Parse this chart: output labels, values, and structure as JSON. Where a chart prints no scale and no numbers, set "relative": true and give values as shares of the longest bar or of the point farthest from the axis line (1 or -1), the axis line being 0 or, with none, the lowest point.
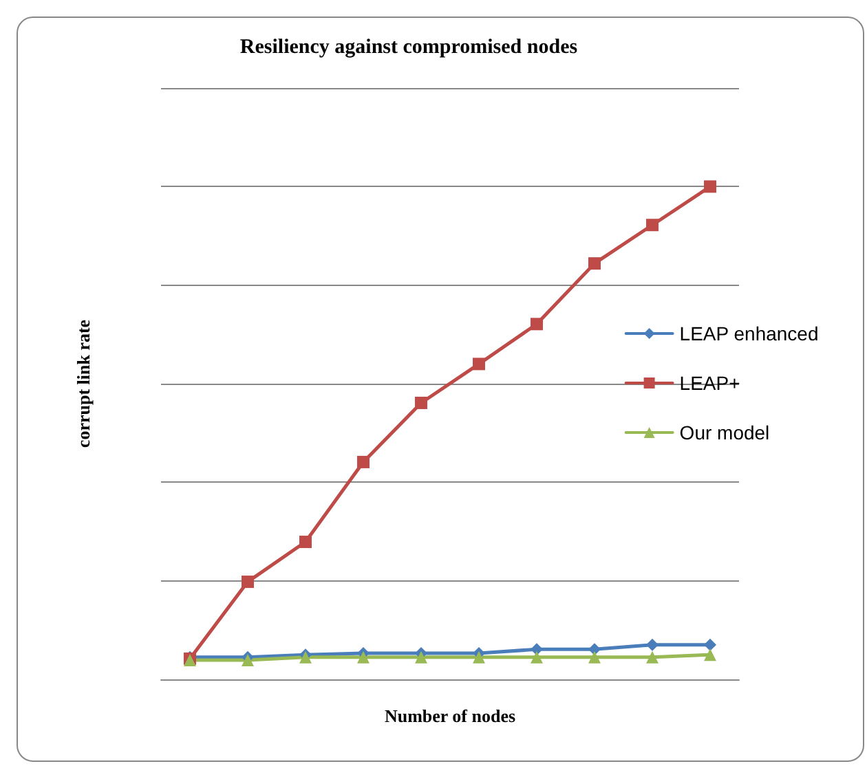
{
  "chart_data": {
    "type": "line",
    "title": "Resiliency against compromised nodes",
    "xlabel": "Number of nodes",
    "ylabel": "corrupt link rate",
    "relative": true,
    "grid": "y",
    "legend": "right",
    "categories": [
      null,
      null,
      null,
      null,
      null,
      null,
      null,
      null,
      null,
      null
    ],
    "series": [
      {
        "name": "LEAP enhanced",
        "color": "#4a7ebb",
        "marker": "diamond",
        "values": [
          0.045,
          0.045,
          0.05,
          0.053,
          0.053,
          0.053,
          0.061,
          0.061,
          0.07,
          0.07
        ]
      },
      {
        "name": "LEAP+",
        "color": "#be4b48",
        "marker": "square",
        "values": [
          0.042,
          0.198,
          0.279,
          0.441,
          0.561,
          0.64,
          0.721,
          0.844,
          0.922,
          1
        ]
      },
      {
        "name": "Our model",
        "color": "#98b954",
        "marker": "triangle",
        "values": [
          0.039,
          0.039,
          0.045,
          0.045,
          0.045,
          0.045,
          0.045,
          0.045,
          0.045,
          0.05
        ]
      }
    ]
  }
}
